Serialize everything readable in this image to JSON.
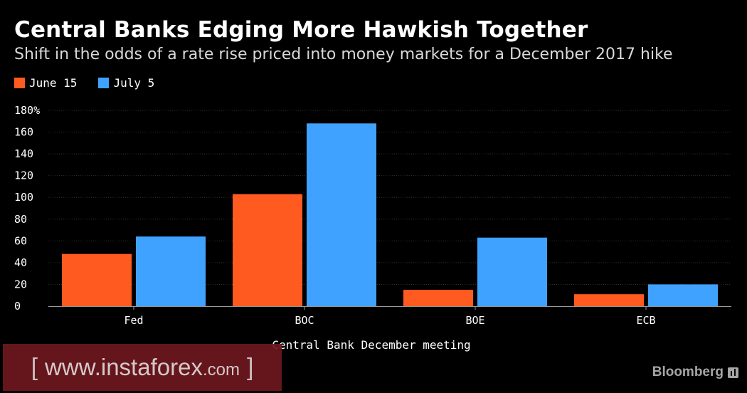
{
  "title": "Central Banks Edging More Hawkish Together",
  "subtitle": "Shift in the odds of a rate rise priced into money markets for a December 2017 hike",
  "watermark": {
    "bracket_open": "[",
    "site": "www.instaforex",
    "tld": ".com",
    "bracket_close": "]"
  },
  "brand": {
    "name": "Bloomberg",
    "icon": "bloomberg-bars-icon"
  },
  "colors": {
    "june": "#ff5a1f",
    "july": "#3fa2ff",
    "grid": "#2f2f2f",
    "axis": "#9a9a9a"
  },
  "chart_data": {
    "type": "bar",
    "categories": [
      "Fed",
      "BOC",
      "BOE",
      "ECB"
    ],
    "series": [
      {
        "name": "June 15",
        "values": [
          48,
          103,
          15,
          11
        ],
        "color": "#ff5a1f"
      },
      {
        "name": "July 5",
        "values": [
          64,
          168,
          63,
          20
        ],
        "color": "#3fa2ff"
      }
    ],
    "xlabel": "Central Bank December meeting",
    "ylabel": "",
    "ylim": [
      0,
      180
    ],
    "yticks": [
      0,
      20,
      40,
      60,
      80,
      100,
      120,
      140,
      160,
      180
    ],
    "ytick_labels": [
      "0",
      "20",
      "40",
      "60",
      "80",
      "100",
      "120",
      "140",
      "160",
      "180%"
    ],
    "grid": true,
    "legend_position": "top-left"
  }
}
